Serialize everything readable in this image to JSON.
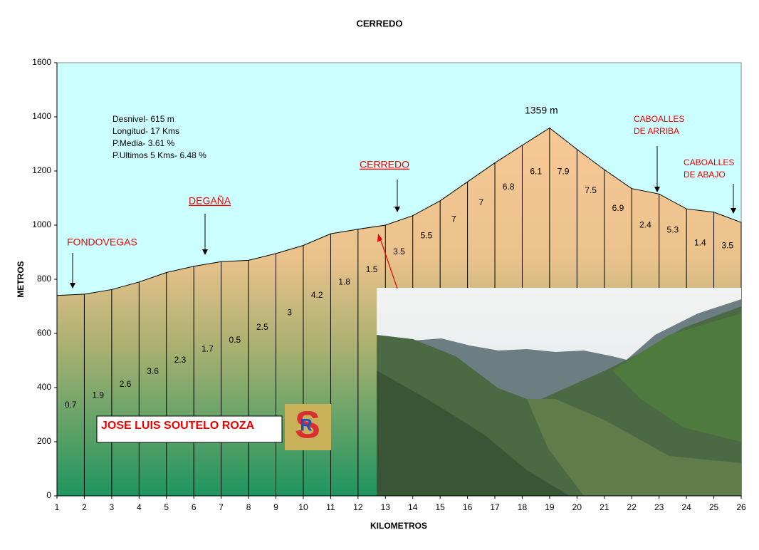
{
  "chart_data": {
    "type": "area",
    "title": "CERREDO",
    "xlabel": "KILOMETROS",
    "ylabel": "METROS",
    "x": [
      1,
      2,
      3,
      4,
      5,
      6,
      7,
      8,
      9,
      10,
      11,
      12,
      13,
      14,
      15,
      16,
      17,
      18,
      19,
      20,
      21,
      22,
      23,
      24,
      25,
      26
    ],
    "values": [
      740,
      745,
      762,
      790,
      825,
      848,
      865,
      870,
      895,
      925,
      968,
      985,
      1000,
      1035,
      1090,
      1160,
      1230,
      1295,
      1359,
      1280,
      1205,
      1135,
      1115,
      1060,
      1048,
      1010
    ],
    "segment_labels": [
      0.7,
      1.9,
      2.6,
      3.6,
      2.3,
      1.7,
      0.5,
      2.5,
      3,
      4.2,
      1.8,
      1.5,
      3.5,
      5.5,
      7,
      7,
      6.8,
      6.1,
      7.9,
      7.5,
      6.9,
      2.4,
      5.3,
      1.4,
      3.5
    ],
    "xlim": [
      1,
      26
    ],
    "xticks": [
      1,
      2,
      3,
      4,
      5,
      6,
      7,
      8,
      9,
      10,
      11,
      12,
      13,
      14,
      15,
      16,
      17,
      18,
      19,
      20,
      21,
      22,
      23,
      24,
      25,
      26
    ],
    "ylim": [
      0,
      1600
    ],
    "yticks": [
      0,
      200,
      400,
      600,
      800,
      1000,
      1200,
      1400,
      1600
    ],
    "stats": [
      "Desnivel- 615 m",
      "Longitud- 17 Kms",
      "P.Media- 3.61 %",
      "P.Ultimos 5 Kms- 6.48 %"
    ],
    "annotations": [
      {
        "lines": [
          "FONDOVEGAS"
        ]
      },
      {
        "lines": [
          "DEGAÑA"
        ]
      },
      {
        "lines": [
          "CERREDO"
        ]
      },
      {
        "lines": [
          "1359 m"
        ]
      },
      {
        "lines": [
          "CABOALLES",
          "DE ARRIBA"
        ]
      },
      {
        "lines": [
          "CABOALLES",
          "DE ABAJO"
        ]
      }
    ],
    "author": "JOSE LUIS SOUTELO ROZA",
    "logo_letters": [
      "S",
      "R"
    ]
  }
}
